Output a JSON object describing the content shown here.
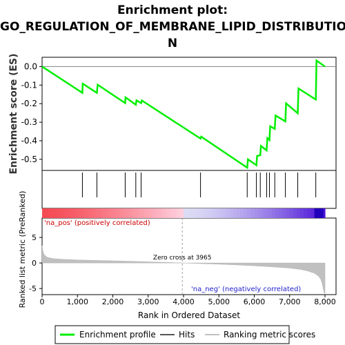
{
  "chart_data": {
    "type": "line",
    "title_lines": [
      "Enrichment plot:",
      "GO_REGULATION_OF_MEMBRANE_LIPID_DISTRIBUTIO",
      "N"
    ],
    "es_panel": {
      "ylabel": "Enrichment score (ES)",
      "yticks": [
        "0.0",
        "-0.1",
        "-0.2",
        "-0.3",
        "-0.4",
        "-0.5"
      ],
      "ylim": [
        -0.56,
        0.05
      ],
      "series": [
        {
          "name": "Enrichment profile",
          "color": "#00ee00",
          "x": [
            0,
            1140,
            1150,
            1550,
            1570,
            2350,
            2360,
            2650,
            2670,
            2800,
            2820,
            4480,
            4500,
            5800,
            5820,
            6060,
            6080,
            6170,
            6190,
            6350,
            6370,
            6430,
            6450,
            6580,
            6600,
            6880,
            6900,
            7230,
            7250,
            7740,
            7760,
            8000
          ],
          "y": [
            0.0,
            -0.142,
            -0.092,
            -0.142,
            -0.098,
            -0.197,
            -0.166,
            -0.206,
            -0.182,
            -0.197,
            -0.183,
            -0.388,
            -0.378,
            -0.545,
            -0.5,
            -0.532,
            -0.482,
            -0.478,
            -0.428,
            -0.452,
            -0.386,
            -0.396,
            -0.322,
            -0.336,
            -0.264,
            -0.296,
            -0.198,
            -0.252,
            -0.118,
            -0.178,
            0.032,
            0.0
          ]
        }
      ]
    },
    "hits": {
      "name": "Hits",
      "x": [
        1140,
        1550,
        2350,
        2650,
        2800,
        4480,
        5800,
        6060,
        6170,
        6350,
        6430,
        6580,
        6880,
        7230,
        7740
      ]
    },
    "ranked_panel": {
      "ylabel": "Ranked list metric (PreRanked)",
      "yticks": [
        "5",
        "0",
        "-5"
      ],
      "ylim": [
        -6.2,
        8.8
      ],
      "xlabel": "Rank in Ordered Dataset",
      "xticks": [
        "0",
        "1,000",
        "2,000",
        "3,000",
        "4,000",
        "5,000",
        "6,000",
        "7,000",
        "8,000"
      ],
      "xlim": [
        0,
        8000
      ],
      "zero_cross": 3965,
      "zero_cross_label": "Zero cross at 3965",
      "pos_label": "'na_pos' (positively correlated)",
      "neg_label": "'na_neg' (negatively correlated)",
      "metric_profile": {
        "name": "Ranking metric scores",
        "x": [
          0,
          20,
          60,
          150,
          300,
          600,
          1000,
          1500,
          2000,
          2500,
          3000,
          3500,
          3965,
          4500,
          5000,
          5500,
          6000,
          6500,
          7000,
          7300,
          7500,
          7700,
          7820,
          7880,
          7920,
          7950,
          7980,
          8000
        ],
        "y": [
          3.4,
          2.4,
          1.6,
          1.1,
          0.85,
          0.7,
          0.6,
          0.5,
          0.42,
          0.33,
          0.22,
          0.12,
          0.0,
          -0.12,
          -0.24,
          -0.38,
          -0.55,
          -0.75,
          -1.0,
          -1.25,
          -1.55,
          -2.0,
          -2.6,
          -3.2,
          -4.0,
          -5.0,
          -5.9,
          -6.0
        ]
      }
    },
    "legend": [
      {
        "label": "Enrichment profile",
        "color": "#00ee00"
      },
      {
        "label": "Hits",
        "color": "#555555"
      },
      {
        "label": "Ranking metric scores",
        "color": "#c0c0c0"
      }
    ]
  }
}
